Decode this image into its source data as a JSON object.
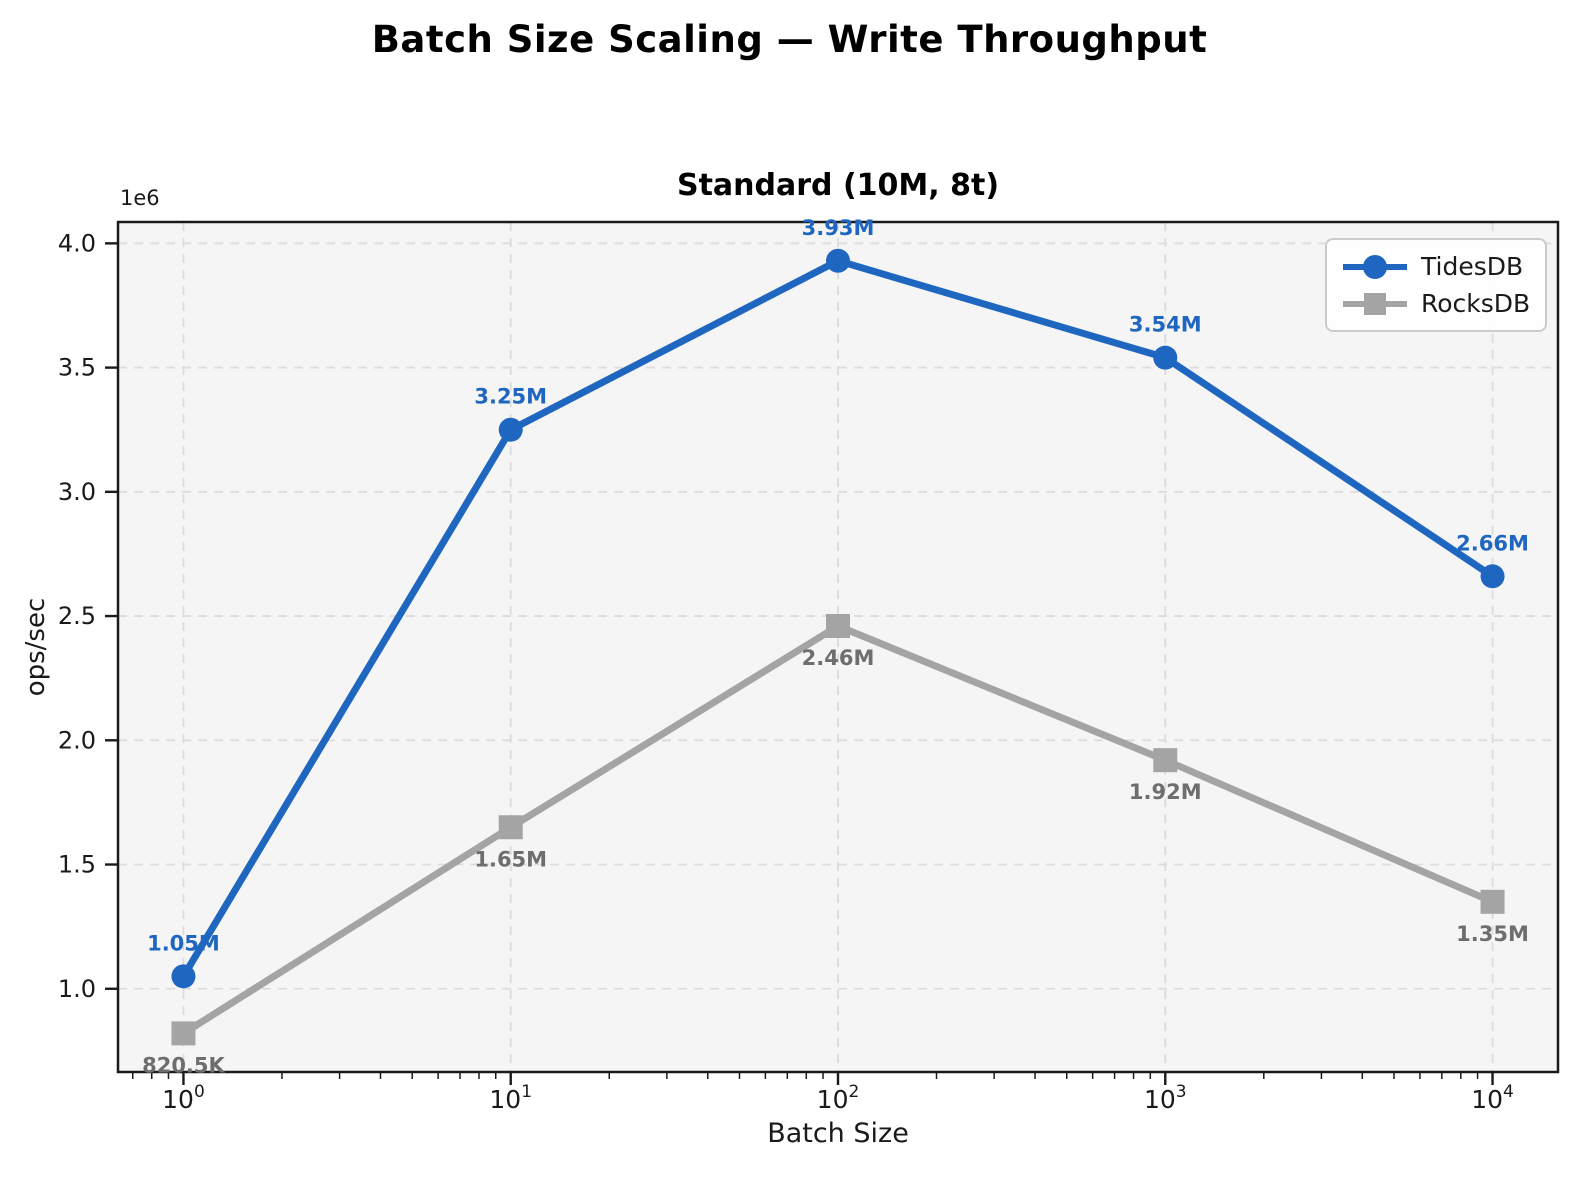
{
  "figure": {
    "title": "Batch Size Scaling — Write Throughput"
  },
  "styles": {
    "plot_bg": "#f5f5f5",
    "grid_color": "#dcdcdc",
    "spine_color": "#1a1a1a",
    "tidesdb_blue": "#1f66c1",
    "rocksdb_gray": "#a4a4a4",
    "rocksdb_label_gray": "#6e6e6e"
  },
  "chart_data": {
    "type": "line",
    "title": "Standard (10M, 8t)",
    "xlabel": "Batch Size",
    "ylabel": "ops/sec",
    "x_scale": "log",
    "x": [
      1,
      10,
      100,
      1000,
      10000
    ],
    "x_tick_exponents": [
      0,
      1,
      2,
      3,
      4
    ],
    "y_ticks": [
      1000000,
      1500000,
      2000000,
      2500000,
      3000000,
      3500000,
      4000000
    ],
    "y_offset_label": "1e6",
    "ylim": [
      665000,
      4086000
    ],
    "xlim_log10": [
      -0.2,
      4.2
    ],
    "grid": true,
    "legend_position": "upper right",
    "series": [
      {
        "name": "TidesDB",
        "color": "#1f66c1",
        "marker": "circle",
        "values": [
          1050000,
          3250000,
          3930000,
          3540000,
          2660000
        ],
        "point_labels": [
          "1.05M",
          "3.25M",
          "3.93M",
          "3.54M",
          "2.66M"
        ],
        "label_color": "#1f66c1",
        "label_side": "above"
      },
      {
        "name": "RocksDB",
        "color": "#a4a4a4",
        "marker": "square",
        "values": [
          820500,
          1650000,
          2460000,
          1920000,
          1350000
        ],
        "point_labels": [
          "820.5K",
          "1.65M",
          "2.46M",
          "1.92M",
          "1.35M"
        ],
        "label_color": "#6e6e6e",
        "label_side": "below"
      }
    ]
  }
}
